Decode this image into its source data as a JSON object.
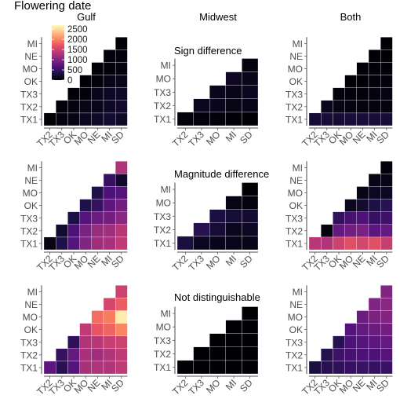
{
  "figure": {
    "title": "Flowering date",
    "column_titles": [
      "Gulf",
      "Midwest",
      "Both"
    ],
    "row_titles": [
      "Sign difference",
      "Magnitude difference",
      "Not distinguishable"
    ]
  },
  "legend": {
    "ticks": [
      "2500",
      "2000",
      "1500",
      "1000",
      "500",
      "0"
    ],
    "tick_values": [
      2500,
      2000,
      1500,
      1000,
      500,
      0
    ],
    "range": [
      0,
      2700
    ],
    "colormap": "magma",
    "colors": [
      "#000004",
      "#1d1147",
      "#51127c",
      "#822681",
      "#b73779",
      "#e75263",
      "#fc8961",
      "#fec287",
      "#fcfdbf"
    ]
  },
  "chart_data": {
    "type": "heatmap",
    "layout": "lower-triangular pairwise matrix, 3x3 grid of panels",
    "scale_max": 2700,
    "labels_six": [
      "TX1",
      "TX2",
      "TX3",
      "OK",
      "MO",
      "NE",
      "MI",
      "SD"
    ],
    "panels": [
      {
        "column": "Gulf",
        "row": "Sign difference",
        "x_labels": [
          "TX2",
          "TX3",
          "OK",
          "MO",
          "NE",
          "MI",
          "SD"
        ],
        "y_labels": [
          "TX1",
          "TX2",
          "TX3",
          "OK",
          "MO",
          "NE",
          "MI"
        ],
        "matrix": [
          [
            10,
            60,
            80,
            140,
            180,
            220,
            180
          ],
          [
            null,
            40,
            60,
            90,
            110,
            160,
            200
          ],
          [
            null,
            null,
            20,
            40,
            120,
            160,
            190
          ],
          [
            null,
            null,
            null,
            10,
            30,
            90,
            110
          ],
          [
            null,
            null,
            null,
            null,
            20,
            30,
            60
          ],
          [
            null,
            null,
            null,
            null,
            null,
            30,
            40
          ],
          [
            null,
            null,
            null,
            null,
            null,
            null,
            20
          ]
        ]
      },
      {
        "column": "Midwest",
        "row": "Sign difference",
        "x_labels": [
          "TX2",
          "TX3",
          "MO",
          "MI",
          "SD"
        ],
        "y_labels": [
          "TX1",
          "TX2",
          "TX3",
          "MO",
          "MI"
        ],
        "matrix": [
          [
            30,
            40,
            30,
            20,
            10
          ],
          [
            null,
            140,
            120,
            90,
            100
          ],
          [
            null,
            null,
            120,
            100,
            140
          ],
          [
            null,
            null,
            null,
            160,
            110
          ],
          [
            null,
            null,
            null,
            null,
            50
          ]
        ]
      },
      {
        "column": "Both",
        "row": "Sign difference",
        "x_labels": [
          "TX2",
          "TX3",
          "OK",
          "MO",
          "NE",
          "MI",
          "SD"
        ],
        "y_labels": [
          "TX1",
          "TX2",
          "TX3",
          "OK",
          "MO",
          "NE",
          "MI"
        ],
        "matrix": [
          [
            250,
            260,
            240,
            260,
            260,
            260,
            250
          ],
          [
            null,
            120,
            80,
            60,
            50,
            60,
            50
          ],
          [
            null,
            null,
            40,
            30,
            30,
            60,
            70
          ],
          [
            null,
            null,
            null,
            10,
            20,
            30,
            40
          ],
          [
            null,
            null,
            null,
            null,
            20,
            20,
            20
          ],
          [
            null,
            null,
            null,
            null,
            null,
            20,
            10
          ],
          [
            null,
            null,
            null,
            null,
            null,
            null,
            10
          ]
        ]
      },
      {
        "column": "Gulf",
        "row": "Magnitude difference",
        "x_labels": [
          "TX2",
          "TX3",
          "OK",
          "MO",
          "NE",
          "MI",
          "SD"
        ],
        "y_labels": [
          "TX1",
          "TX2",
          "TX3",
          "OK",
          "MO",
          "NE",
          "MI"
        ],
        "matrix": [
          [
            80,
            350,
            700,
            1000,
            1200,
            1250,
            1400
          ],
          [
            null,
            220,
            650,
            950,
            1150,
            1200,
            1350
          ],
          [
            null,
            null,
            320,
            700,
            850,
            900,
            1050
          ],
          [
            null,
            null,
            null,
            350,
            500,
            750,
            900
          ],
          [
            null,
            null,
            null,
            null,
            350,
            650,
            700
          ],
          [
            null,
            null,
            null,
            null,
            null,
            500,
            200
          ],
          [
            null,
            null,
            null,
            null,
            null,
            null,
            1300
          ]
        ]
      },
      {
        "column": "Midwest",
        "row": "Magnitude difference",
        "x_labels": [
          "TX2",
          "TX3",
          "MO",
          "MI",
          "SD"
        ],
        "y_labels": [
          "TX1",
          "TX2",
          "TX3",
          "MO",
          "MI"
        ],
        "matrix": [
          [
            300,
            140,
            100,
            110,
            100
          ],
          [
            null,
            400,
            250,
            130,
            160
          ],
          [
            null,
            null,
            300,
            250,
            220
          ],
          [
            null,
            null,
            null,
            80,
            60
          ],
          [
            null,
            null,
            null,
            null,
            20
          ]
        ]
      },
      {
        "column": "Both",
        "row": "Magnitude difference",
        "x_labels": [
          "TX2",
          "TX3",
          "OK",
          "MO",
          "NE",
          "MI",
          "SD"
        ],
        "y_labels": [
          "TX1",
          "TX2",
          "TX3",
          "OK",
          "MO",
          "NE",
          "MI"
        ],
        "matrix": [
          [
            1350,
            1300,
            1500,
            1650,
            1550,
            1650,
            1450
          ],
          [
            null,
            50,
            800,
            900,
            950,
            750,
            800
          ],
          [
            null,
            null,
            480,
            600,
            650,
            500,
            550
          ],
          [
            null,
            null,
            null,
            130,
            220,
            330,
            400
          ],
          [
            null,
            null,
            null,
            null,
            100,
            150,
            150
          ],
          [
            null,
            null,
            null,
            null,
            null,
            90,
            80
          ],
          [
            null,
            null,
            null,
            null,
            null,
            null,
            40
          ]
        ]
      },
      {
        "column": "Gulf",
        "row": "Not distinguishable",
        "x_labels": [
          "TX2",
          "TX3",
          "OK",
          "MO",
          "NE",
          "MI",
          "SD"
        ],
        "y_labels": [
          "TX1",
          "TX2",
          "TX3",
          "OK",
          "MO",
          "NE",
          "MI"
        ],
        "matrix": [
          [
            750,
            400,
            700,
            1250,
            1300,
            1300,
            1400
          ],
          [
            null,
            500,
            800,
            1250,
            1200,
            1300,
            1400
          ],
          [
            null,
            null,
            450,
            1300,
            1350,
            1450,
            1500
          ],
          [
            null,
            null,
            null,
            1400,
            1700,
            1800,
            2000
          ],
          [
            null,
            null,
            null,
            null,
            1850,
            1950,
            2600
          ],
          [
            null,
            null,
            null,
            null,
            null,
            1550,
            1750
          ],
          [
            null,
            null,
            null,
            null,
            null,
            null,
            1500
          ]
        ]
      },
      {
        "column": "Midwest",
        "row": "Not distinguishable",
        "x_labels": [
          "TX2",
          "TX3",
          "MO",
          "MI",
          "SD"
        ],
        "y_labels": [
          "TX1",
          "TX2",
          "TX3",
          "MO",
          "MI"
        ],
        "matrix": [
          [
            5,
            5,
            5,
            5,
            5
          ],
          [
            null,
            5,
            5,
            5,
            5
          ],
          [
            null,
            null,
            5,
            5,
            5
          ],
          [
            null,
            null,
            null,
            5,
            5
          ],
          [
            null,
            null,
            null,
            null,
            5
          ]
        ]
      },
      {
        "column": "Both",
        "row": "Not distinguishable",
        "x_labels": [
          "TX2",
          "TX3",
          "OK",
          "MO",
          "NE",
          "MI",
          "SD"
        ],
        "y_labels": [
          "TX1",
          "TX2",
          "TX3",
          "OK",
          "MO",
          "NE",
          "MI"
        ],
        "matrix": [
          [
            300,
            400,
            450,
            500,
            520,
            500,
            520
          ],
          [
            null,
            380,
            550,
            600,
            650,
            650,
            700
          ],
          [
            null,
            null,
            400,
            650,
            700,
            750,
            800
          ],
          [
            null,
            null,
            null,
            700,
            800,
            850,
            900
          ],
          [
            null,
            null,
            null,
            null,
            850,
            950,
            1000
          ],
          [
            null,
            null,
            null,
            null,
            null,
            1000,
            1050
          ],
          [
            null,
            null,
            null,
            null,
            null,
            null,
            1000
          ]
        ]
      }
    ]
  }
}
